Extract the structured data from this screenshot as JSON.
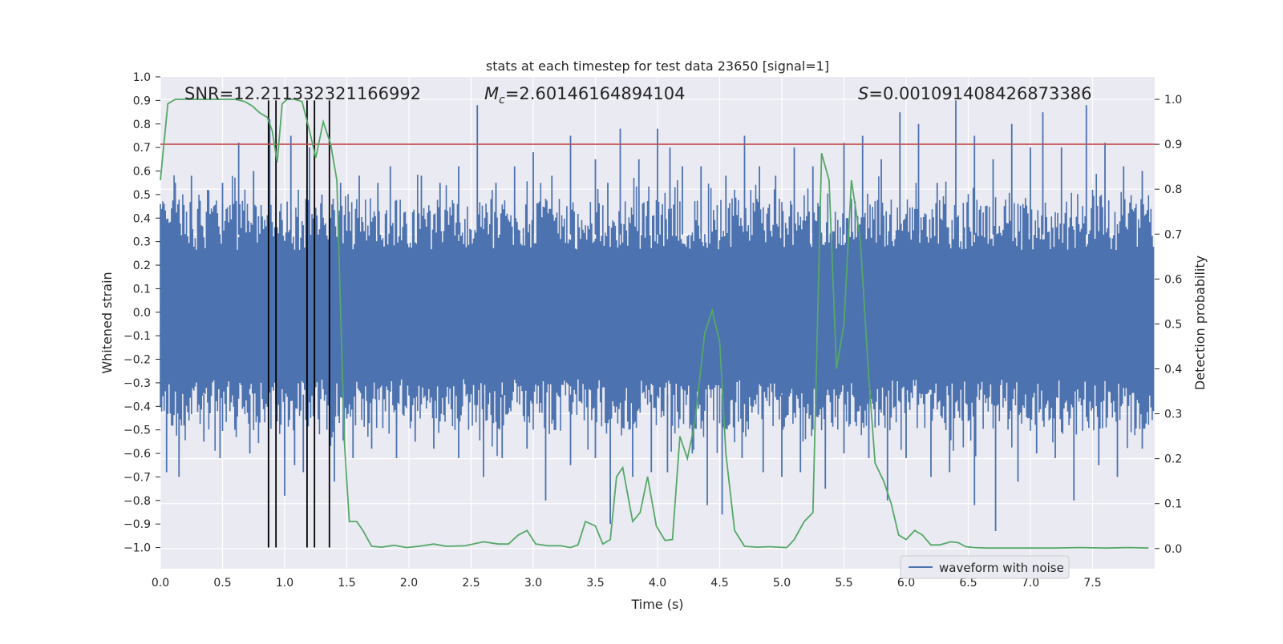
{
  "chart_data": {
    "type": "line",
    "title": "stats at each timestep for test data 23650 [signal=1]",
    "xlabel": "Time (s)",
    "ylabel": "Whitened strain",
    "ylabel_right": "Detection probability",
    "xlim": [
      0.0,
      8.0
    ],
    "ylim": [
      -1.09,
      1.0
    ],
    "ylim_right": [
      -0.045,
      1.05
    ],
    "xticks": [
      "0.0",
      "0.5",
      "1.0",
      "1.5",
      "2.0",
      "2.5",
      "3.0",
      "3.5",
      "4.0",
      "4.5",
      "5.0",
      "5.5",
      "6.0",
      "6.5",
      "7.0",
      "7.5"
    ],
    "xtick_values": [
      0.0,
      0.5,
      1.0,
      1.5,
      2.0,
      2.5,
      3.0,
      3.5,
      4.0,
      4.5,
      5.0,
      5.5,
      6.0,
      6.5,
      7.0,
      7.5
    ],
    "yticks": [
      "1.0",
      "0.9",
      "0.8",
      "0.7",
      "0.6",
      "0.5",
      "0.4",
      "0.3",
      "0.2",
      "0.1",
      "0.0",
      "−0.1",
      "−0.2",
      "−0.3",
      "−0.4",
      "−0.5",
      "−0.6",
      "−0.7",
      "−0.8",
      "−0.9",
      "−1.0"
    ],
    "ytick_values": [
      1.0,
      0.9,
      0.8,
      0.7,
      0.6,
      0.5,
      0.4,
      0.3,
      0.2,
      0.1,
      0.0,
      -0.1,
      -0.2,
      -0.3,
      -0.4,
      -0.5,
      -0.6,
      -0.7,
      -0.8,
      -0.9,
      -1.0
    ],
    "yticks_right": [
      "1.0",
      "0.9",
      "0.8",
      "0.7",
      "0.6",
      "0.5",
      "0.4",
      "0.3",
      "0.2",
      "0.1",
      "0.0"
    ],
    "ytick_values_right": [
      1.0,
      0.9,
      0.8,
      0.7,
      0.6,
      0.5,
      0.4,
      0.3,
      0.2,
      0.1,
      0.0
    ],
    "grid": true,
    "legend": {
      "placement": "lower-right",
      "entries": [
        "waveform with noise"
      ]
    },
    "annotations": {
      "snr": "SNR=12.211332321166992",
      "mc_symbol": "M",
      "mc_sub": "c",
      "mc_value": "=2.60146164894104",
      "s_symbol": "S",
      "s_value": "=0.0010914084268733​86"
    },
    "threshold": {
      "value": 0.9,
      "axis": "right",
      "color": "#c44e52"
    },
    "event_lines": [
      0.87,
      0.93,
      1.18,
      1.24,
      1.36
    ],
    "waveform": {
      "name": "waveform with noise",
      "color": "#4c72b0",
      "x_range": [
        0.0,
        8.0
      ],
      "sample_count": 800,
      "band": [
        -0.35,
        0.33
      ],
      "peaks_up": [
        [
          0.02,
          0.45
        ],
        [
          0.12,
          0.55
        ],
        [
          0.25,
          0.58
        ],
        [
          0.38,
          0.52
        ],
        [
          0.5,
          0.55
        ],
        [
          0.63,
          0.72
        ],
        [
          0.75,
          0.6
        ],
        [
          0.88,
          0.82
        ],
        [
          1.05,
          0.75
        ],
        [
          1.2,
          0.7
        ],
        [
          1.3,
          0.5
        ],
        [
          1.45,
          0.55
        ],
        [
          1.6,
          0.58
        ],
        [
          1.75,
          0.55
        ],
        [
          1.85,
          0.62
        ],
        [
          2.1,
          0.58
        ],
        [
          2.25,
          0.55
        ],
        [
          2.4,
          0.62
        ],
        [
          2.55,
          0.88
        ],
        [
          2.7,
          0.55
        ],
        [
          2.85,
          0.62
        ],
        [
          3.0,
          0.68
        ],
        [
          3.15,
          0.58
        ],
        [
          3.3,
          0.75
        ],
        [
          3.5,
          0.65
        ],
        [
          3.6,
          0.55
        ],
        [
          3.7,
          0.78
        ],
        [
          3.85,
          0.65
        ],
        [
          4.0,
          0.78
        ],
        [
          4.1,
          0.7
        ],
        [
          4.2,
          0.62
        ],
        [
          4.35,
          0.62
        ],
        [
          4.55,
          0.58
        ],
        [
          4.7,
          0.75
        ],
        [
          4.82,
          0.62
        ],
        [
          4.95,
          0.58
        ],
        [
          5.1,
          0.7
        ],
        [
          5.25,
          0.62
        ],
        [
          5.5,
          0.72
        ],
        [
          5.65,
          0.75
        ],
        [
          5.8,
          0.65
        ],
        [
          5.95,
          0.85
        ],
        [
          6.1,
          0.8
        ],
        [
          6.25,
          0.55
        ],
        [
          6.4,
          0.9
        ],
        [
          6.55,
          0.75
        ],
        [
          6.7,
          0.65
        ],
        [
          6.85,
          0.8
        ],
        [
          7.0,
          0.7
        ],
        [
          7.1,
          0.85
        ],
        [
          7.25,
          0.7
        ],
        [
          7.45,
          0.88
        ],
        [
          7.6,
          0.72
        ],
        [
          7.75,
          0.62
        ],
        [
          7.9,
          0.6
        ]
      ],
      "peaks_down": [
        [
          0.05,
          -0.68
        ],
        [
          0.15,
          -0.7
        ],
        [
          0.35,
          -0.55
        ],
        [
          0.48,
          -0.62
        ],
        [
          0.6,
          -0.5
        ],
        [
          0.72,
          -0.6
        ],
        [
          0.87,
          -1.0
        ],
        [
          1.0,
          -0.78
        ],
        [
          1.08,
          -0.65
        ],
        [
          1.15,
          -0.68
        ],
        [
          1.4,
          -0.72
        ],
        [
          1.55,
          -0.62
        ],
        [
          1.7,
          -0.58
        ],
        [
          1.9,
          -0.62
        ],
        [
          2.05,
          -0.55
        ],
        [
          2.2,
          -0.58
        ],
        [
          2.4,
          -0.62
        ],
        [
          2.6,
          -0.7
        ],
        [
          2.75,
          -0.62
        ],
        [
          2.95,
          -0.58
        ],
        [
          3.1,
          -0.8
        ],
        [
          3.3,
          -0.65
        ],
        [
          3.5,
          -0.62
        ],
        [
          3.62,
          -0.9
        ],
        [
          3.8,
          -0.7
        ],
        [
          3.95,
          -0.68
        ],
        [
          4.08,
          -0.68
        ],
        [
          4.28,
          -0.6
        ],
        [
          4.4,
          -0.82
        ],
        [
          4.52,
          -0.86
        ],
        [
          4.68,
          -0.62
        ],
        [
          4.85,
          -0.68
        ],
        [
          5.0,
          -0.7
        ],
        [
          5.15,
          -0.68
        ],
        [
          5.35,
          -0.75
        ],
        [
          5.5,
          -0.6
        ],
        [
          5.7,
          -0.62
        ],
        [
          5.85,
          -0.8
        ],
        [
          6.0,
          -0.62
        ],
        [
          6.2,
          -0.7
        ],
        [
          6.35,
          -0.68
        ],
        [
          6.55,
          -0.82
        ],
        [
          6.72,
          -0.93
        ],
        [
          6.9,
          -0.72
        ],
        [
          7.05,
          -0.6
        ],
        [
          7.2,
          -0.62
        ],
        [
          7.35,
          -0.8
        ],
        [
          7.55,
          -0.65
        ],
        [
          7.7,
          -0.7
        ],
        [
          7.9,
          -0.58
        ]
      ]
    },
    "detection_probability": {
      "color": "#55a868",
      "x": [
        0.0,
        0.06,
        0.12,
        0.2,
        0.3,
        0.4,
        0.5,
        0.6,
        0.68,
        0.74,
        0.8,
        0.86,
        0.9,
        0.94,
        0.98,
        1.02,
        1.08,
        1.14,
        1.2,
        1.25,
        1.31,
        1.37,
        1.42,
        1.48,
        1.52,
        1.58,
        1.63,
        1.7,
        1.78,
        1.88,
        1.98,
        2.08,
        2.2,
        2.3,
        2.45,
        2.6,
        2.72,
        2.8,
        2.88,
        2.95,
        3.02,
        3.12,
        3.22,
        3.3,
        3.36,
        3.42,
        3.5,
        3.56,
        3.62,
        3.67,
        3.72,
        3.8,
        3.86,
        3.92,
        3.99,
        4.06,
        4.12,
        4.18,
        4.24,
        4.3,
        4.38,
        4.44,
        4.5,
        4.55,
        4.62,
        4.7,
        4.8,
        4.9,
        4.97,
        5.04,
        5.1,
        5.18,
        5.25,
        5.32,
        5.38,
        5.44,
        5.5,
        5.56,
        5.63,
        5.7,
        5.75,
        5.82,
        5.88,
        5.94,
        6.0,
        6.07,
        6.13,
        6.2,
        6.27,
        6.36,
        6.42,
        6.48,
        6.55,
        6.65,
        6.8,
        7.0,
        7.2,
        7.4,
        7.6,
        7.8,
        7.95
      ],
      "y": [
        0.82,
        0.99,
        1.0,
        1.0,
        1.0,
        1.0,
        1.0,
        1.0,
        0.995,
        0.985,
        0.97,
        0.96,
        0.93,
        0.86,
        0.99,
        1.0,
        1.0,
        0.995,
        0.93,
        0.87,
        0.95,
        0.9,
        0.82,
        0.24,
        0.06,
        0.06,
        0.04,
        0.005,
        0.003,
        0.007,
        0.002,
        0.005,
        0.01,
        0.005,
        0.006,
        0.015,
        0.01,
        0.01,
        0.03,
        0.04,
        0.01,
        0.006,
        0.006,
        0.002,
        0.008,
        0.06,
        0.05,
        0.01,
        0.02,
        0.16,
        0.18,
        0.06,
        0.08,
        0.16,
        0.05,
        0.018,
        0.02,
        0.25,
        0.2,
        0.28,
        0.48,
        0.53,
        0.46,
        0.21,
        0.04,
        0.005,
        0.003,
        0.004,
        0.003,
        0.002,
        0.02,
        0.06,
        0.08,
        0.88,
        0.82,
        0.4,
        0.5,
        0.82,
        0.69,
        0.38,
        0.19,
        0.15,
        0.1,
        0.03,
        0.02,
        0.04,
        0.03,
        0.008,
        0.008,
        0.015,
        0.013,
        0.004,
        0.002,
        0.001,
        0.001,
        0.001,
        0.001,
        0.002,
        0.001,
        0.002,
        0.001
      ]
    }
  }
}
